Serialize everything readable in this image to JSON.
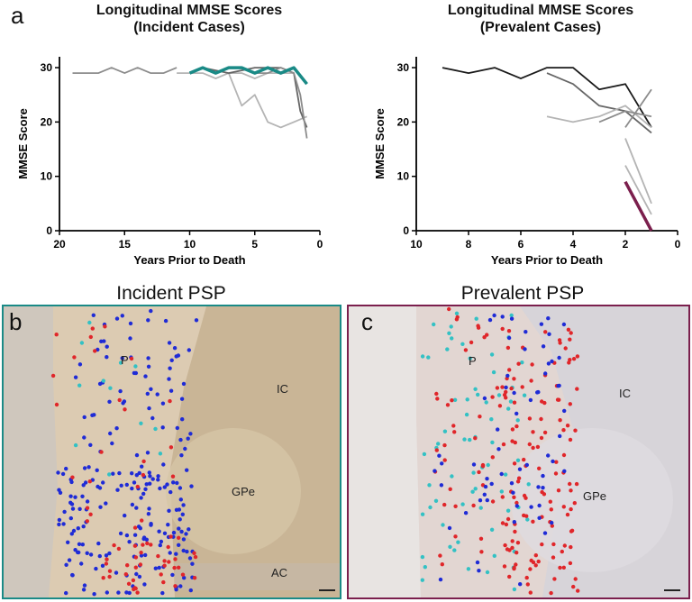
{
  "panel_letters": {
    "a": "a",
    "b": "b",
    "c": "c"
  },
  "colors": {
    "teal": "#1a8a86",
    "maroon": "#7b1f4d",
    "black": "#1a1a1a",
    "dark_gray": "#666666",
    "gray": "#8c8c8c",
    "light_gray": "#b4b4b4",
    "dot_blue": "#1f2bd6",
    "dot_red": "#e0262a",
    "dot_cyan": "#33c1c4"
  },
  "chart_data": [
    {
      "type": "line",
      "title": "Longitudinal MMSE Scores",
      "subtitle": "(Incident Cases)",
      "xlabel": "Years Prior to Death",
      "ylabel": "MMSE Score",
      "xlim": [
        20,
        0
      ],
      "ylim": [
        0,
        32
      ],
      "xticks": [
        "20",
        "15",
        "10",
        "5",
        "0"
      ],
      "yticks": [
        "0",
        "10",
        "20",
        "30"
      ],
      "series": [
        {
          "color": "#8c8c8c",
          "x": [
            19,
            17,
            16,
            15,
            14,
            13,
            12,
            11
          ],
          "y": [
            29,
            29,
            30,
            29,
            30,
            29,
            29,
            30
          ]
        },
        {
          "color": "#b4b4b4",
          "x": [
            11,
            9,
            8,
            7,
            6,
            5,
            4,
            3,
            2
          ],
          "y": [
            29,
            29,
            28,
            29,
            29,
            28,
            29,
            29,
            29
          ]
        },
        {
          "color": "#b4b4b4",
          "x": [
            7,
            6,
            5,
            4,
            3,
            2,
            1
          ],
          "y": [
            29,
            23,
            25,
            20,
            19,
            20,
            21
          ]
        },
        {
          "color": "#666666",
          "x": [
            9,
            7,
            5,
            3,
            2,
            1.5,
            1
          ],
          "y": [
            30,
            29,
            30,
            30,
            29,
            22,
            19
          ]
        },
        {
          "color": "#8c8c8c",
          "x": [
            6,
            5,
            4,
            3,
            2,
            1.5,
            1
          ],
          "y": [
            30,
            29,
            29,
            30,
            29,
            25,
            17
          ]
        },
        {
          "color": "#1a8a86",
          "x": [
            10,
            9,
            8,
            7,
            6,
            5,
            4,
            3,
            2,
            1
          ],
          "y": [
            29,
            30,
            29,
            30,
            30,
            29,
            30,
            29,
            30,
            27
          ]
        }
      ]
    },
    {
      "type": "line",
      "title": "Longitudinal MMSE Scores",
      "subtitle": "(Prevalent Cases)",
      "xlabel": "Years Prior to Death",
      "ylabel": "MMSE Score",
      "xlim": [
        10,
        0
      ],
      "ylim": [
        0,
        32
      ],
      "xticks": [
        "10",
        "8",
        "6",
        "4",
        "2",
        "0"
      ],
      "yticks": [
        "0",
        "10",
        "20",
        "30"
      ],
      "series": [
        {
          "color": "#1a1a1a",
          "x": [
            9,
            8,
            7,
            6,
            5,
            4,
            3,
            2,
            1
          ],
          "y": [
            30,
            29,
            30,
            28,
            30,
            30,
            26,
            27,
            19
          ]
        },
        {
          "color": "#666666",
          "x": [
            5,
            4,
            3,
            2,
            1
          ],
          "y": [
            29,
            27,
            23,
            22,
            18
          ]
        },
        {
          "color": "#b4b4b4",
          "x": [
            5,
            4,
            3,
            2,
            1
          ],
          "y": [
            21,
            20,
            21,
            23,
            19
          ]
        },
        {
          "color": "#8c8c8c",
          "x": [
            2,
            1
          ],
          "y": [
            19,
            26
          ]
        },
        {
          "color": "#8c8c8c",
          "x": [
            3,
            2,
            1
          ],
          "y": [
            20,
            22,
            21
          ]
        },
        {
          "color": "#b4b4b4",
          "x": [
            2,
            1
          ],
          "y": [
            17,
            5
          ]
        },
        {
          "color": "#b4b4b4",
          "x": [
            2,
            1
          ],
          "y": [
            12,
            3
          ]
        },
        {
          "color": "#7b1f4d",
          "x": [
            2,
            1
          ],
          "y": [
            9,
            0
          ]
        }
      ]
    }
  ],
  "images": {
    "incident": {
      "title": "Incident PSP",
      "regions": {
        "P": "P",
        "IC": "IC",
        "GPe": "GPe",
        "AC": "AC"
      }
    },
    "prevalent": {
      "title": "Prevalent PSP",
      "regions": {
        "P": "P",
        "IC": "IC",
        "GPe": "GPe"
      }
    }
  }
}
